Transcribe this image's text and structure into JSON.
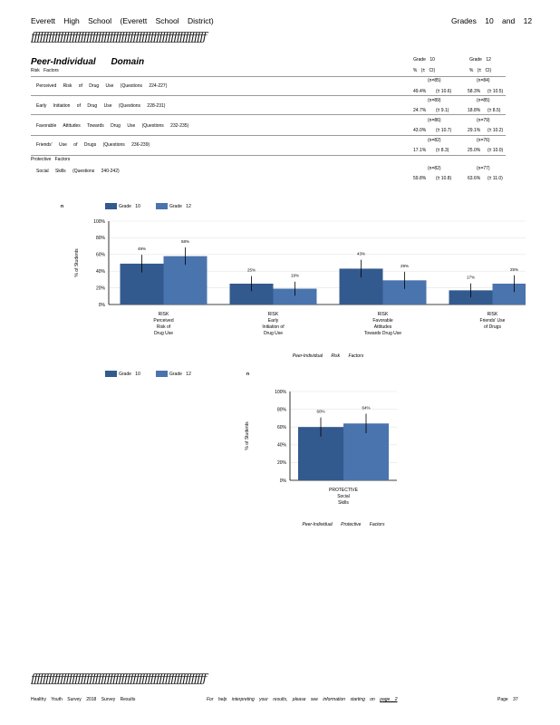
{
  "header": {
    "left": "Everett High School (Everett School District)",
    "right": "Grades 10 and 12",
    "rule": "ƒƒƒƒƒƒƒƒƒƒƒƒƒƒƒƒƒƒƒƒƒƒƒƒƒƒƒƒƒƒƒƒƒƒƒƒƒƒƒƒƒƒƒƒƒƒƒƒƒƒƒƒƒƒƒƒƒƒƒƒ"
  },
  "section": {
    "domain_title": "Peer-Individual Domain",
    "risk_heading": "Risk Factors",
    "protective_heading": "Protective Factors"
  },
  "columns": [
    {
      "grade": "Grade 10",
      "sub": "% (± CI)"
    },
    {
      "grade": "Grade 12",
      "sub": "% (± CI)"
    }
  ],
  "table_rows": [
    {
      "label": "Perceived Risk of Drug Use (Questions 224-227)",
      "g10": {
        "n": "(n=85)",
        "pct": "49.4%",
        "ci": "(± 10.6)"
      },
      "g12": {
        "n": "(n=84)",
        "pct": "58.3%",
        "ci": "(± 10.5)"
      }
    },
    {
      "label": "Early Initiation of Drug Use (Questions 228-231)",
      "g10": {
        "n": "(n=89)",
        "pct": "24.7%",
        "ci": "(± 9.1)"
      },
      "g12": {
        "n": "(n=85)",
        "pct": "18.8%",
        "ci": "(± 8.5)"
      }
    },
    {
      "label": "Favorable Attitudes Towards Drug Use (Questions 232-235)",
      "g10": {
        "n": "(n=86)",
        "pct": "43.0%",
        "ci": "(± 10.7)"
      },
      "g12": {
        "n": "(n=79)",
        "pct": "29.1%",
        "ci": "(± 10.2)"
      }
    },
    {
      "label": "Friends' Use of Drugs (Questions 236-239)",
      "g10": {
        "n": "(n=82)",
        "pct": "17.1%",
        "ci": "(± 8.3)"
      },
      "g12": {
        "n": "(n=76)",
        "pct": "25.0%",
        "ci": "(± 10.0)"
      }
    },
    {
      "label": "Social Skills (Questions 240-242)",
      "g10": {
        "n": "(n=82)",
        "pct": "59.8%",
        "ci": "(± 10.8)"
      },
      "g12": {
        "n": "(n=77)",
        "pct": "63.6%",
        "ci": "(± 11.0)"
      }
    }
  ],
  "chart_data": [
    {
      "type": "bar",
      "ylabel": "% of Students",
      "xlabel": "Peer-Individual Risk Factors",
      "ylim": [
        0,
        100
      ],
      "yticks": [
        "0%",
        "20%",
        "40%",
        "60%",
        "80%",
        "100%"
      ],
      "categories": [
        [
          "RISK",
          "Perceived",
          "Risk of",
          "Drug Use"
        ],
        [
          "RISK",
          "Early",
          "Initiation of",
          "Drug Use"
        ],
        [
          "RISK",
          "Favorable",
          "Attitudes",
          "Towards Drug Use"
        ],
        [
          "RISK",
          "Friends' Use",
          "of Drugs"
        ]
      ],
      "series": [
        {
          "name": "Grade 10",
          "color": "#335a8e",
          "values": [
            49,
            25,
            43,
            17
          ],
          "ci": [
            10.6,
            9.1,
            10.7,
            8.3
          ],
          "labels": [
            "49%",
            "25%",
            "43%",
            "17%"
          ]
        },
        {
          "name": "Grade 12",
          "color": "#4a74ad",
          "values": [
            58,
            19,
            29,
            25
          ],
          "ci": [
            10.5,
            8.5,
            10.2,
            10.0
          ],
          "labels": [
            "58%",
            "19%",
            "29%",
            "25%"
          ]
        }
      ],
      "legend_marker": "n"
    },
    {
      "type": "bar",
      "ylabel": "% of Students",
      "xlabel": "Peer-Individual Protective Factors",
      "ylim": [
        0,
        100
      ],
      "yticks": [
        "0%",
        "20%",
        "40%",
        "60%",
        "80%",
        "100%"
      ],
      "categories": [
        [
          "PROTECTIVE",
          "Social",
          "Skills"
        ]
      ],
      "series": [
        {
          "name": "Grade 10",
          "color": "#335a8e",
          "values": [
            60
          ],
          "ci": [
            10.8
          ],
          "labels": [
            "60%"
          ]
        },
        {
          "name": "Grade 12",
          "color": "#4a74ad",
          "values": [
            64
          ],
          "ci": [
            11.0
          ],
          "labels": [
            "64%"
          ]
        }
      ],
      "legend_marker": "n"
    }
  ],
  "footer": {
    "left": "Healthy Youth Survey 2018 Survey Results",
    "center": "For help interpreting your results, please see information starting on",
    "page_link": "page 2",
    "right": "Page 37"
  }
}
